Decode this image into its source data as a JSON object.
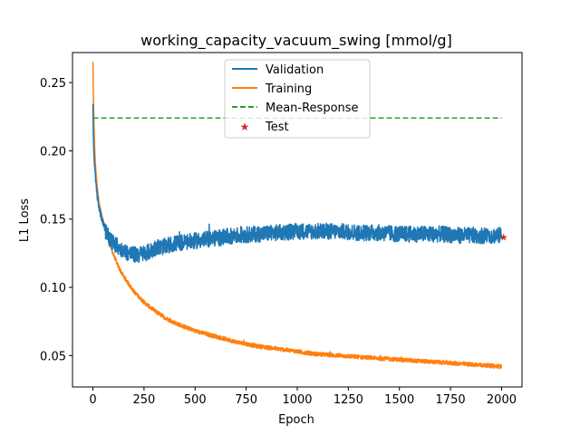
{
  "chart_data": {
    "type": "line",
    "title": "working_capacity_vacuum_swing [mmol/g]",
    "xlabel": "Epoch",
    "ylabel": "L1 Loss",
    "xlim": [
      -100,
      2100
    ],
    "ylim": [
      0.027,
      0.272
    ],
    "xticks": [
      0,
      250,
      500,
      750,
      1000,
      1250,
      1500,
      1750,
      2000
    ],
    "yticks": [
      0.05,
      0.1,
      0.15,
      0.2,
      0.25
    ],
    "ytick_labels": [
      "0.05",
      "0.10",
      "0.15",
      "0.20",
      "0.25"
    ],
    "grid": false,
    "legend_position": "upper-center",
    "colors": {
      "validation": "#1f77b4",
      "training": "#ff7f0e",
      "mean_response": "#2ca02c",
      "test": "#d62728"
    },
    "series": [
      {
        "name": "Validation",
        "style": "line",
        "x": [
          0,
          2,
          5,
          10,
          15,
          20,
          30,
          40,
          50,
          60,
          75,
          90,
          110,
          130,
          150,
          175,
          200,
          225,
          250,
          275,
          300,
          310,
          330,
          350,
          400,
          450,
          500,
          600,
          700,
          800,
          900,
          1000,
          1100,
          1200,
          1300,
          1400,
          1500,
          1600,
          1700,
          1800,
          1900,
          2000
        ],
        "y": [
          0.236,
          0.21,
          0.198,
          0.185,
          0.176,
          0.168,
          0.158,
          0.152,
          0.147,
          0.142,
          0.137,
          0.134,
          0.131,
          0.129,
          0.127,
          0.125,
          0.124,
          0.124,
          0.125,
          0.126,
          0.128,
          0.13,
          0.129,
          0.13,
          0.132,
          0.133,
          0.134,
          0.136,
          0.138,
          0.139,
          0.14,
          0.141,
          0.141,
          0.141,
          0.14,
          0.14,
          0.139,
          0.139,
          0.139,
          0.138,
          0.138,
          0.138
        ],
        "noise_amplitude": 0.006
      },
      {
        "name": "Training",
        "style": "line",
        "x": [
          0,
          2,
          5,
          8,
          12,
          20,
          30,
          40,
          50,
          60,
          75,
          100,
          125,
          150,
          200,
          250,
          300,
          350,
          400,
          450,
          500,
          600,
          700,
          800,
          900,
          1000,
          1100,
          1200,
          1300,
          1400,
          1500,
          1600,
          1700,
          1800,
          1900,
          2000
        ],
        "y": [
          0.265,
          0.24,
          0.22,
          0.205,
          0.19,
          0.175,
          0.162,
          0.155,
          0.149,
          0.143,
          0.135,
          0.124,
          0.115,
          0.108,
          0.097,
          0.089,
          0.083,
          0.078,
          0.074,
          0.071,
          0.068,
          0.064,
          0.06,
          0.057,
          0.055,
          0.053,
          0.051,
          0.05,
          0.049,
          0.048,
          0.047,
          0.046,
          0.045,
          0.044,
          0.043,
          0.042
        ],
        "noise_amplitude": 0.0015
      },
      {
        "name": "Mean-Response",
        "style": "dashed",
        "x": [
          0,
          2000
        ],
        "y": [
          0.224,
          0.224
        ]
      },
      {
        "name": "Test",
        "style": "marker",
        "x": [
          2010
        ],
        "y": [
          0.137
        ]
      }
    ]
  }
}
